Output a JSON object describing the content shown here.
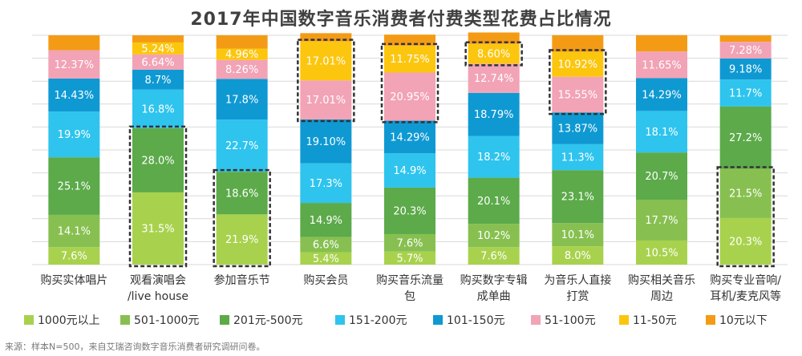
{
  "chart_data": {
    "type": "stacked-bar",
    "title": "2017年中国数字音乐消费者付费类型花费占比情况",
    "ylim": [
      0,
      100
    ],
    "grid": true,
    "legend_placement": "bottom",
    "categories": [
      [
        "购买实体唱片"
      ],
      [
        "观看演唱会",
        "/live house"
      ],
      [
        "参加音乐节"
      ],
      [
        "购买会员"
      ],
      [
        "购买音乐流量",
        "包"
      ],
      [
        "购买数字专辑",
        "成单曲"
      ],
      [
        "为音乐人直接",
        "打赏"
      ],
      [
        "购买相关音乐",
        "周边"
      ],
      [
        "购买专业音响/",
        "耳机/麦克风等"
      ]
    ],
    "series": [
      {
        "name": "1000元以上",
        "color": "#a8d24d",
        "values": [
          7.6,
          31.5,
          21.9,
          5.4,
          5.7,
          7.6,
          8.0,
          10.5,
          20.3
        ],
        "labels": [
          "7.6%",
          "31.5%",
          "21.9%",
          "5.4%",
          "5.7%",
          "7.6%",
          "8.0%",
          "10.5%",
          "20.3%"
        ]
      },
      {
        "name": "501-1000元",
        "color": "#87c050",
        "values": [
          14.1,
          0,
          0,
          6.6,
          7.6,
          10.2,
          10.1,
          17.7,
          21.5
        ],
        "labels": [
          "14.1%",
          "",
          "",
          "6.6%",
          "7.6%",
          "10.2%",
          "10.1%",
          "17.7%",
          "21.5%"
        ]
      },
      {
        "name": "201元-500元",
        "color": "#5caa4a",
        "values": [
          25.1,
          28.0,
          18.6,
          14.9,
          20.3,
          20.1,
          23.1,
          20.7,
          27.2
        ],
        "labels": [
          "25.1%",
          "28.0%",
          "18.6%",
          "14.9%",
          "20.3%",
          "20.1%",
          "23.1%",
          "20.7%",
          "27.2%"
        ]
      },
      {
        "name": "151-200元",
        "color": "#2ec4ee",
        "values": [
          19.9,
          16.8,
          22.7,
          17.3,
          14.9,
          18.2,
          11.3,
          18.1,
          11.7
        ],
        "labels": [
          "19.9%",
          "16.8%",
          "22.7%",
          "17.3%",
          "14.9%",
          "18.2%",
          "11.3%",
          "18.1%",
          "11.7%"
        ]
      },
      {
        "name": "101-150元",
        "color": "#0f99d3",
        "values": [
          14.43,
          8.7,
          17.8,
          19.1,
          14.29,
          18.79,
          13.87,
          14.29,
          9.18
        ],
        "labels": [
          "14.43%",
          "8.7%",
          "17.8%",
          "19.10%",
          "14.29%",
          "18.79%",
          "13.87%",
          "14.29%",
          "9.18%"
        ]
      },
      {
        "name": "51-100元",
        "color": "#f2a3b6",
        "values": [
          12.37,
          6.64,
          8.26,
          17.01,
          20.95,
          12.74,
          15.55,
          11.65,
          7.28
        ],
        "labels": [
          "12.37%",
          "6.64%",
          "8.26%",
          "17.01%",
          "20.95%",
          "12.74%",
          "15.55%",
          "11.65%",
          "7.28%"
        ]
      },
      {
        "name": "11-50元",
        "color": "#fcc60f",
        "values": [
          0,
          5.24,
          4.96,
          17.01,
          11.75,
          8.6,
          10.92,
          0,
          0
        ],
        "labels": [
          "",
          "5.24%",
          "4.96%",
          "17.01%",
          "11.75%",
          "8.60%",
          "10.92%",
          "",
          ""
        ]
      },
      {
        "name": "10元以下",
        "color": "#f49b16",
        "values": [
          6.5,
          3.1,
          5.8,
          3.6,
          4.8,
          5.0,
          7.2,
          7.1,
          2.8
        ],
        "labels": [
          "",
          "",
          "",
          "",
          "",
          "",
          "",
          "",
          ""
        ]
      }
    ],
    "highlights": [
      {
        "category": 1,
        "series": [
          0,
          2
        ]
      },
      {
        "category": 2,
        "series": [
          0,
          2
        ]
      },
      {
        "category": 3,
        "series": [
          5,
          6
        ]
      },
      {
        "category": 4,
        "series": [
          5,
          6
        ]
      },
      {
        "category": 5,
        "series": [
          6,
          6
        ]
      },
      {
        "category": 6,
        "series": [
          5,
          6
        ]
      },
      {
        "category": 8,
        "series": [
          0,
          1
        ]
      }
    ],
    "grid_color": "#d9d9d9",
    "label_color": "#ffffff",
    "highlight_color": "#333333"
  },
  "source_note": "来源：样本N=500，来自艾瑞咨询数字音乐消费者研究调研问卷。"
}
